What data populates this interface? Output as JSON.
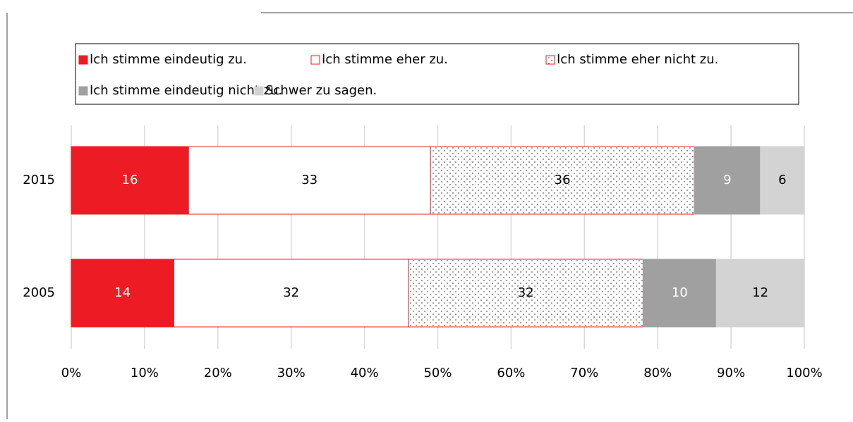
{
  "chart_data": {
    "type": "stacked_barh",
    "categories": [
      "2015",
      "2005"
    ],
    "series": [
      {
        "name": "Ich stimme eindeutig zu.",
        "color": "#ed1c24",
        "border": "#ed1c24",
        "label_color": "#ffffff",
        "values": [
          16,
          14
        ]
      },
      {
        "name": "Ich stimme eher zu.",
        "color": "#ffffff",
        "border": "#ed1c24",
        "label_color": "#000000",
        "values": [
          33,
          32
        ]
      },
      {
        "name": "Ich stimme eher nicht zu.",
        "color": "#ffffff",
        "border": "#ed1c24",
        "pattern": "dots",
        "label_color": "#000000",
        "values": [
          36,
          32
        ]
      },
      {
        "name": "Ich stimme eindeutig nicht zu.",
        "color": "#a0a0a0",
        "border": "#a0a0a0",
        "label_color": "#ffffff",
        "values": [
          9,
          10
        ]
      },
      {
        "name": "Schwer zu sagen.",
        "color": "#d3d3d3",
        "border": "#d3d3d3",
        "label_color": "#000000",
        "values": [
          6,
          12
        ]
      }
    ],
    "xlim": [
      0,
      100
    ],
    "xticks": [
      {
        "value": 0,
        "label": "0%"
      },
      {
        "value": 10,
        "label": "10%"
      },
      {
        "value": 20,
        "label": "20%"
      },
      {
        "value": 30,
        "label": "30%"
      },
      {
        "value": 40,
        "label": "40%"
      },
      {
        "value": 50,
        "label": "50%"
      },
      {
        "value": 60,
        "label": "60%"
      },
      {
        "value": 70,
        "label": "70%"
      },
      {
        "value": 80,
        "label": "80%"
      },
      {
        "value": 90,
        "label": "90%"
      },
      {
        "value": 100,
        "label": "100%"
      }
    ],
    "grid": true
  }
}
